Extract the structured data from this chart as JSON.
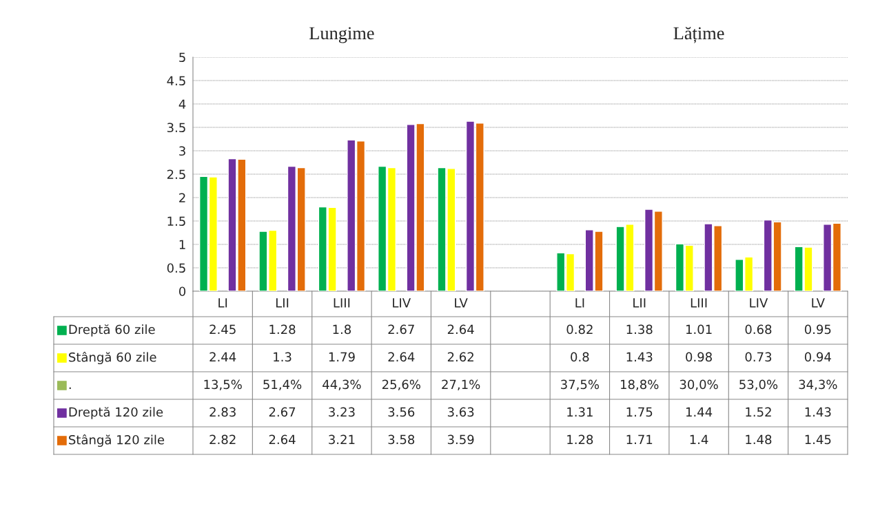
{
  "chart_data": {
    "type": "bar",
    "annotations": [
      "Lungime",
      "Lățime"
    ],
    "categories": [
      "LI",
      "LII",
      "LIII",
      "LIV",
      "LV",
      null,
      "LI",
      "LII",
      "LIII",
      "LIV",
      "LV"
    ],
    "series": [
      {
        "name": "Dreptă 60 zile",
        "color": "#00b050",
        "values": [
          2.45,
          1.28,
          1.8,
          2.67,
          2.64,
          null,
          0.82,
          1.38,
          1.01,
          0.68,
          0.95
        ]
      },
      {
        "name": "Stângă 60 zile",
        "color": "#ffff00",
        "values": [
          2.44,
          1.3,
          1.79,
          2.64,
          2.62,
          null,
          0.8,
          1.43,
          0.98,
          0.73,
          0.94
        ]
      },
      {
        "name": ".",
        "color": "#9bbb59",
        "values": [
          null,
          null,
          null,
          null,
          null,
          null,
          null,
          null,
          null,
          null,
          null
        ],
        "value_labels": [
          "13,5%",
          "51,4%",
          "44,3%",
          "25,6%",
          "27,1%",
          null,
          "37,5%",
          "18,8%",
          "30,0%",
          "53,0%",
          "34,3%"
        ]
      },
      {
        "name": "Dreptă 120 zile",
        "color": "#7030a0",
        "values": [
          2.83,
          2.67,
          3.23,
          3.56,
          3.63,
          null,
          1.31,
          1.75,
          1.44,
          1.52,
          1.43
        ]
      },
      {
        "name": "Stângă 120 zile",
        "color": "#e36c09",
        "values": [
          2.82,
          2.64,
          3.21,
          3.58,
          3.59,
          null,
          1.28,
          1.71,
          1.4,
          1.48,
          1.45
        ]
      }
    ],
    "ylim": [
      0,
      5
    ],
    "yticks": [
      0,
      0.5,
      1,
      1.5,
      2,
      2.5,
      3,
      3.5,
      4,
      4.5,
      5
    ],
    "grid": "y",
    "legend": "bottom",
    "data_labels": true
  }
}
